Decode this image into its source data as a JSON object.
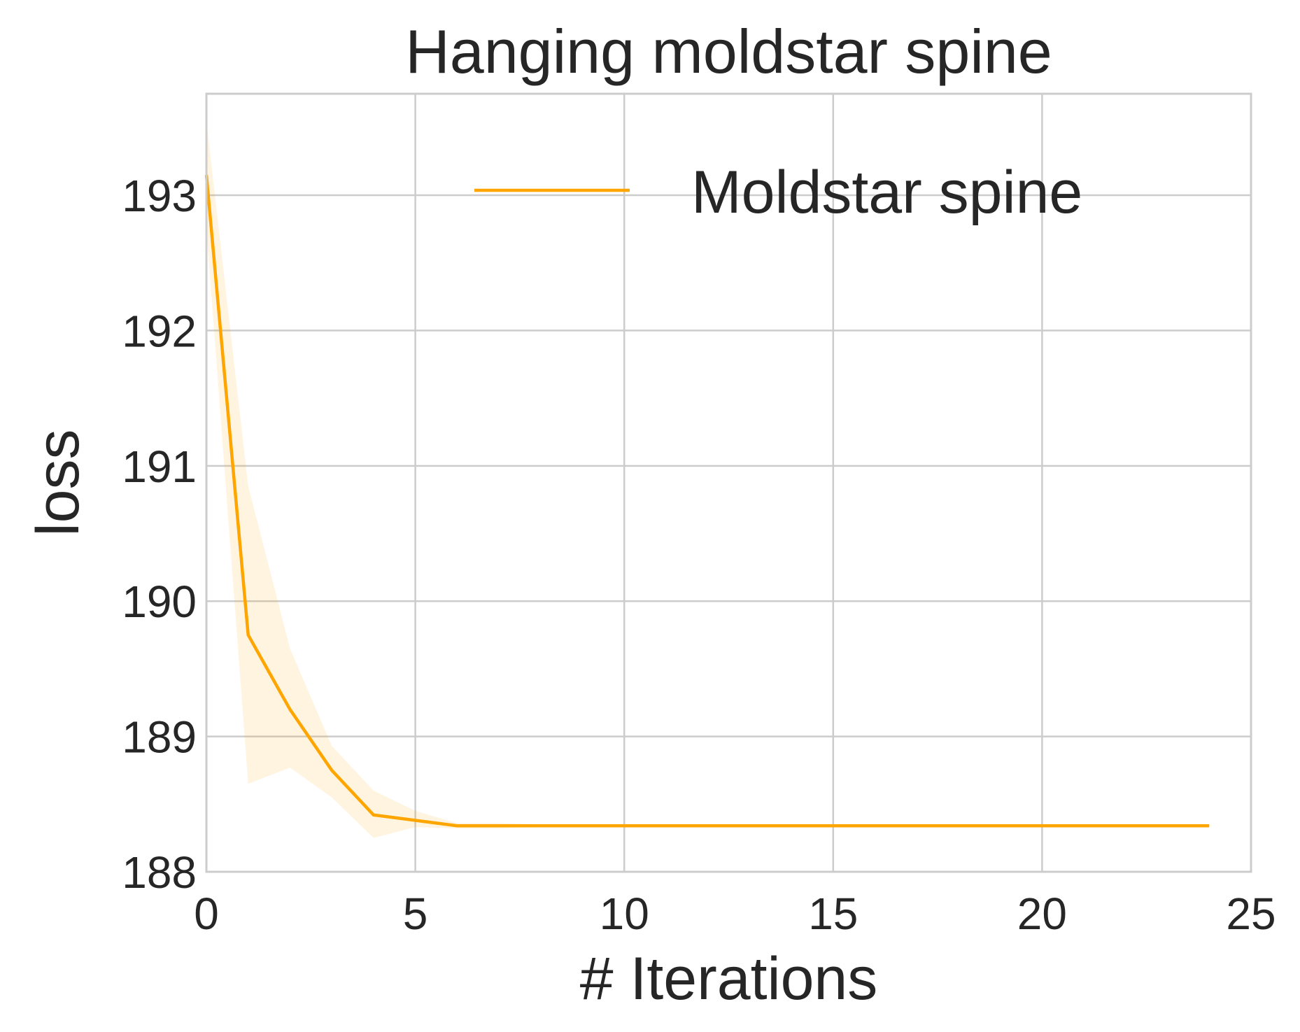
{
  "chart_data": {
    "type": "line",
    "title": "Hanging moldstar spine",
    "xlabel": "# Iterations",
    "ylabel": "loss",
    "xlim": [
      0,
      25
    ],
    "ylim": [
      188,
      193.75
    ],
    "xticks": [
      "0",
      "5",
      "10",
      "15",
      "20",
      "25"
    ],
    "yticks": [
      "188",
      "189",
      "190",
      "191",
      "192",
      "193"
    ],
    "grid": true,
    "legend_position": "top-right",
    "series": [
      {
        "name": "Moldstar spine",
        "color": "#ffa500",
        "x": [
          0,
          1,
          2,
          3,
          4,
          5,
          6,
          7,
          8,
          9,
          10,
          11,
          12,
          13,
          14,
          15,
          16,
          17,
          18,
          19,
          20,
          21,
          22,
          23,
          24
        ],
        "y": [
          193.15,
          189.75,
          189.2,
          188.75,
          188.42,
          188.38,
          188.34,
          188.34,
          188.34,
          188.34,
          188.34,
          188.34,
          188.34,
          188.34,
          188.34,
          188.34,
          188.34,
          188.34,
          188.34,
          188.34,
          188.34,
          188.34,
          188.34,
          188.34,
          188.34
        ],
        "band_upper": [
          193.55,
          190.85,
          189.65,
          188.93,
          188.6,
          188.45,
          188.36,
          188.36,
          188.35,
          188.35,
          188.35,
          188.35,
          188.35,
          188.35,
          188.35,
          188.35,
          188.35,
          188.35,
          188.35,
          188.35,
          188.35,
          188.35,
          188.35,
          188.35,
          188.35
        ],
        "band_lower": [
          192.75,
          188.65,
          188.77,
          188.55,
          188.25,
          188.33,
          188.32,
          188.32,
          188.33,
          188.33,
          188.33,
          188.33,
          188.33,
          188.33,
          188.33,
          188.33,
          188.33,
          188.33,
          188.33,
          188.33,
          188.33,
          188.33,
          188.33,
          188.33,
          188.33
        ]
      }
    ]
  }
}
